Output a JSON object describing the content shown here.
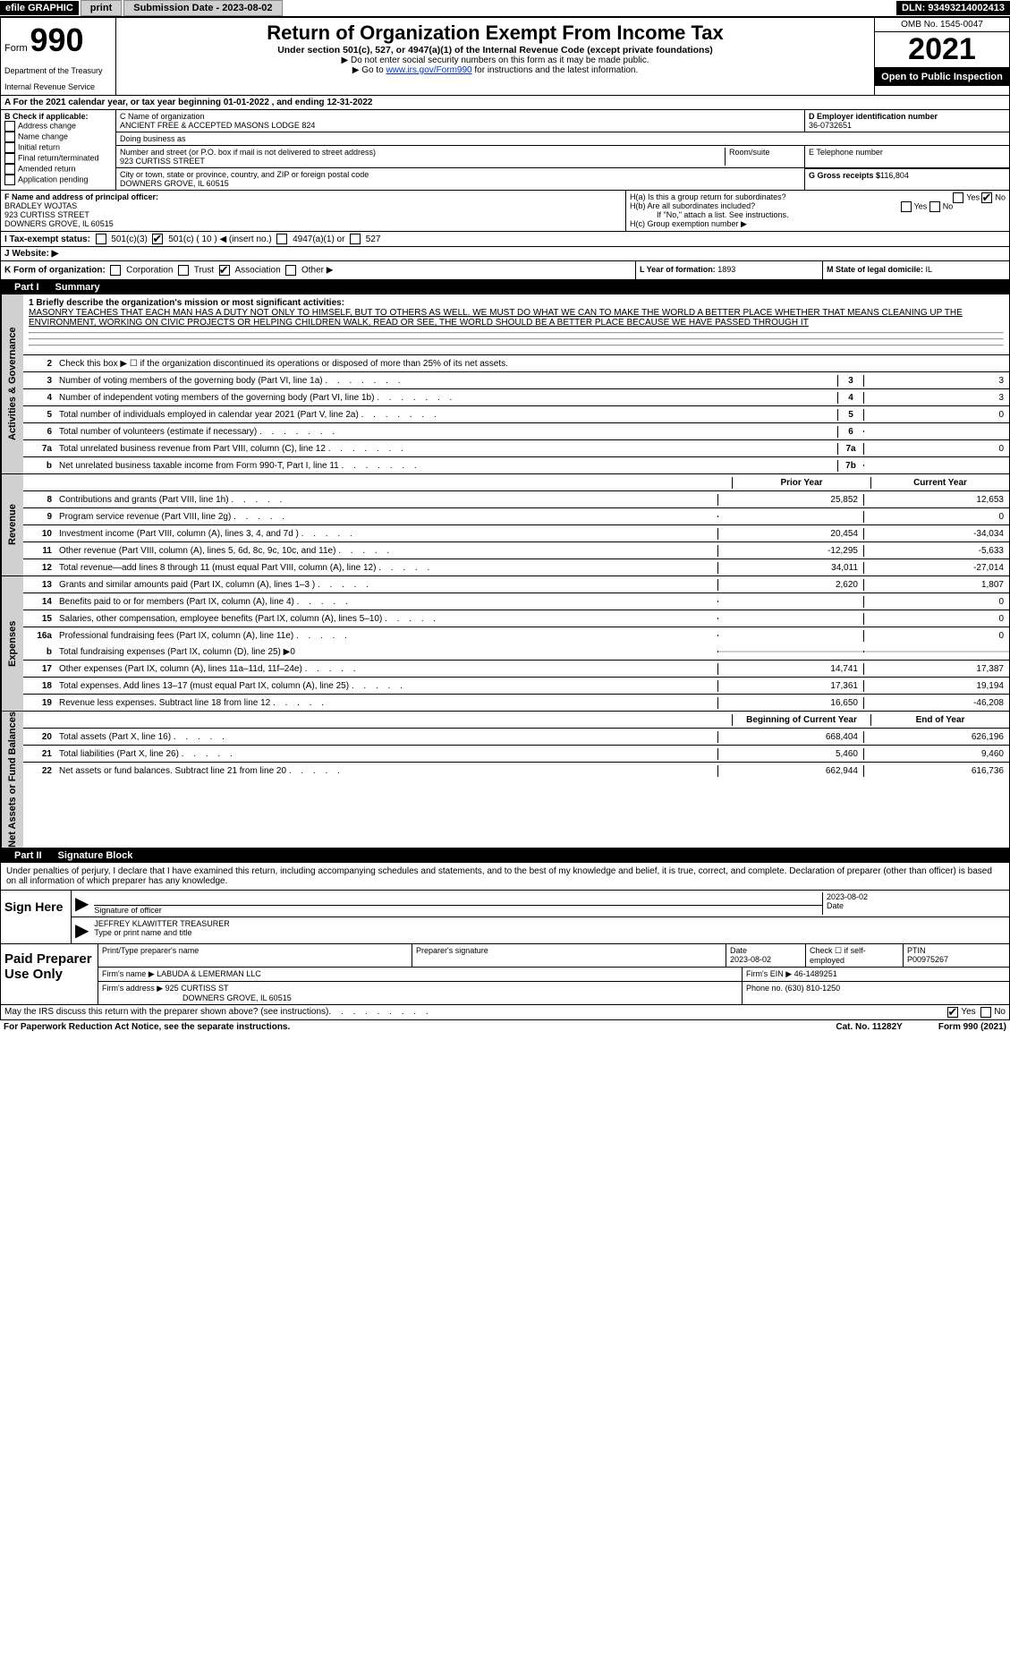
{
  "top_bar": {
    "efile": "efile GRAPHIC",
    "print": "print",
    "submission": "Submission Date - 2023-08-02",
    "dln": "DLN: 93493214002413"
  },
  "header": {
    "form_prefix": "Form",
    "form_number": "990",
    "dept1": "Department of the Treasury",
    "dept2": "Internal Revenue Service",
    "title": "Return of Organization Exempt From Income Tax",
    "subtitle": "Under section 501(c), 527, or 4947(a)(1) of the Internal Revenue Code (except private foundations)",
    "note1": "▶ Do not enter social security numbers on this form as it may be made public.",
    "note2_pre": "▶ Go to ",
    "note2_link": "www.irs.gov/Form990",
    "note2_post": " for instructions and the latest information.",
    "omb": "OMB No. 1545-0047",
    "year": "2021",
    "open_pub": "Open to Public Inspection"
  },
  "row_a": "A For the 2021 calendar year, or tax year beginning 01-01-2022    , and ending 12-31-2022",
  "section_b": {
    "label": "B Check if applicable:",
    "items": [
      "Address change",
      "Name change",
      "Initial return",
      "Final return/terminated",
      "Amended return",
      "Application pending"
    ]
  },
  "section_c": {
    "name_label": "C Name of organization",
    "name": "ANCIENT FREE & ACCEPTED MASONS LODGE 824",
    "dba_label": "Doing business as",
    "addr_label": "Number and street (or P.O. box if mail is not delivered to street address)",
    "room_label": "Room/suite",
    "addr": "923 CURTISS STREET",
    "city_label": "City or town, state or province, country, and ZIP or foreign postal code",
    "city": "DOWNERS GROVE, IL  60515"
  },
  "section_d": {
    "label": "D Employer identification number",
    "value": "36-0732651"
  },
  "section_e": {
    "label": "E Telephone number",
    "value": ""
  },
  "section_g": {
    "label": "G Gross receipts $",
    "value": "116,804"
  },
  "section_f": {
    "label": "F  Name and address of principal officer:",
    "name": "BRADLEY WOJTAS",
    "addr1": "923 CURTISS STREET",
    "addr2": "DOWNERS GROVE, IL  60515"
  },
  "section_h": {
    "ha": "H(a)  Is this a group return for subordinates?",
    "hb": "H(b)  Are all subordinates included?",
    "hb_note": "If \"No,\" attach a list. See instructions.",
    "hc": "H(c)  Group exemption number ▶",
    "yes": "Yes",
    "no": "No"
  },
  "row_i": {
    "label": "I  Tax-exempt status:",
    "o1": "501(c)(3)",
    "o2": "501(c) ( 10 ) ◀ (insert no.)",
    "o3": "4947(a)(1) or",
    "o4": "527"
  },
  "row_j": "J  Website: ▶",
  "row_k": {
    "label": "K Form of organization:",
    "o1": "Corporation",
    "o2": "Trust",
    "o3": "Association",
    "o4": "Other ▶"
  },
  "row_l": {
    "label": "L Year of formation:",
    "value": "1893"
  },
  "row_m": {
    "label": "M State of legal domicile:",
    "value": "IL"
  },
  "parts": {
    "p1": "Part I",
    "p1_title": "Summary",
    "p2": "Part II",
    "p2_title": "Signature Block"
  },
  "side": {
    "gov": "Activities & Governance",
    "rev": "Revenue",
    "exp": "Expenses",
    "net": "Net Assets or Fund Balances"
  },
  "summary": {
    "line1_label": "1  Briefly describe the organization's mission or most significant activities:",
    "mission": "MASONRY TEACHES THAT EACH MAN HAS A DUTY NOT ONLY TO HIMSELF, BUT TO OTHERS AS WELL. WE MUST DO WHAT WE CAN TO MAKE THE WORLD A BETTER PLACE WHETHER THAT MEANS CLEANING UP THE ENVIRONMENT, WORKING ON CIVIC PROJECTS OR HELPING CHILDREN WALK, READ OR SEE, THE WORLD SHOULD BE A BETTER PLACE BECAUSE WE HAVE PASSED THROUGH IT",
    "line2": "Check this box ▶ ☐  if the organization discontinued its operations or disposed of more than 25% of its net assets.",
    "prior_year": "Prior Year",
    "current_year": "Current Year",
    "begin_year": "Beginning of Current Year",
    "end_year": "End of Year"
  },
  "gov_rows": [
    {
      "n": "3",
      "d": "Number of voting members of the governing body (Part VI, line 1a)",
      "box": "3",
      "v": "3"
    },
    {
      "n": "4",
      "d": "Number of independent voting members of the governing body (Part VI, line 1b)",
      "box": "4",
      "v": "3"
    },
    {
      "n": "5",
      "d": "Total number of individuals employed in calendar year 2021 (Part V, line 2a)",
      "box": "5",
      "v": "0"
    },
    {
      "n": "6",
      "d": "Total number of volunteers (estimate if necessary)",
      "box": "6",
      "v": ""
    },
    {
      "n": "7a",
      "d": "Total unrelated business revenue from Part VIII, column (C), line 12",
      "box": "7a",
      "v": "0"
    },
    {
      "n": "b",
      "d": "Net unrelated business taxable income from Form 990-T, Part I, line 11",
      "box": "7b",
      "v": ""
    }
  ],
  "rev_rows": [
    {
      "n": "8",
      "d": "Contributions and grants (Part VIII, line 1h)",
      "p": "25,852",
      "c": "12,653"
    },
    {
      "n": "9",
      "d": "Program service revenue (Part VIII, line 2g)",
      "p": "",
      "c": "0"
    },
    {
      "n": "10",
      "d": "Investment income (Part VIII, column (A), lines 3, 4, and 7d )",
      "p": "20,454",
      "c": "-34,034"
    },
    {
      "n": "11",
      "d": "Other revenue (Part VIII, column (A), lines 5, 6d, 8c, 9c, 10c, and 11e)",
      "p": "-12,295",
      "c": "-5,633"
    },
    {
      "n": "12",
      "d": "Total revenue—add lines 8 through 11 (must equal Part VIII, column (A), line 12)",
      "p": "34,011",
      "c": "-27,014"
    }
  ],
  "exp_rows": [
    {
      "n": "13",
      "d": "Grants and similar amounts paid (Part IX, column (A), lines 1–3 )",
      "p": "2,620",
      "c": "1,807"
    },
    {
      "n": "14",
      "d": "Benefits paid to or for members (Part IX, column (A), line 4)",
      "p": "",
      "c": "0"
    },
    {
      "n": "15",
      "d": "Salaries, other compensation, employee benefits (Part IX, column (A), lines 5–10)",
      "p": "",
      "c": "0"
    },
    {
      "n": "16a",
      "d": "Professional fundraising fees (Part IX, column (A), line 11e)",
      "p": "",
      "c": "0"
    }
  ],
  "exp_b": {
    "n": "b",
    "d": "Total fundraising expenses (Part IX, column (D), line 25) ▶0"
  },
  "exp_rows2": [
    {
      "n": "17",
      "d": "Other expenses (Part IX, column (A), lines 11a–11d, 11f–24e)",
      "p": "14,741",
      "c": "17,387"
    },
    {
      "n": "18",
      "d": "Total expenses. Add lines 13–17 (must equal Part IX, column (A), line 25)",
      "p": "17,361",
      "c": "19,194"
    },
    {
      "n": "19",
      "d": "Revenue less expenses. Subtract line 18 from line 12",
      "p": "16,650",
      "c": "-46,208"
    }
  ],
  "net_rows": [
    {
      "n": "20",
      "d": "Total assets (Part X, line 16)",
      "p": "668,404",
      "c": "626,196"
    },
    {
      "n": "21",
      "d": "Total liabilities (Part X, line 26)",
      "p": "5,460",
      "c": "9,460"
    },
    {
      "n": "22",
      "d": "Net assets or fund balances. Subtract line 21 from line 20",
      "p": "662,944",
      "c": "616,736"
    }
  ],
  "declaration": "Under penalties of perjury, I declare that I have examined this return, including accompanying schedules and statements, and to the best of my knowledge and belief, it is true, correct, and complete. Declaration of preparer (other than officer) is based on all information of which preparer has any knowledge.",
  "sign": {
    "label": "Sign Here",
    "sig_label": "Signature of officer",
    "date_label": "Date",
    "date": "2023-08-02",
    "name": "JEFFREY KLAWITTER  TREASURER",
    "name_label": "Type or print name and title"
  },
  "paid": {
    "label": "Paid Preparer Use Only",
    "h1": "Print/Type preparer's name",
    "h2": "Preparer's signature",
    "h3": "Date",
    "h3v": "2023-08-02",
    "h4": "Check ☐ if self-employed",
    "h5": "PTIN",
    "h5v": "P00975267",
    "firm_label": "Firm's name    ▶",
    "firm": "LABUDA & LEMERMAN LLC",
    "ein_label": "Firm's EIN ▶",
    "ein": "46-1489251",
    "addr_label": "Firm's address ▶",
    "addr1": "925 CURTISS ST",
    "addr2": "DOWNERS GROVE, IL  60515",
    "phone_label": "Phone no.",
    "phone": "(630) 810-1250"
  },
  "footer": {
    "q": "May the IRS discuss this return with the preparer shown above? (see instructions)",
    "yes": "Yes",
    "no": "No",
    "pra": "For Paperwork Reduction Act Notice, see the separate instructions.",
    "cat": "Cat. No. 11282Y",
    "form": "Form 990 (2021)"
  },
  "colors": {
    "black": "#000000",
    "white": "#ffffff",
    "gray_bg": "#d0d0d0",
    "link": "#0033cc"
  }
}
